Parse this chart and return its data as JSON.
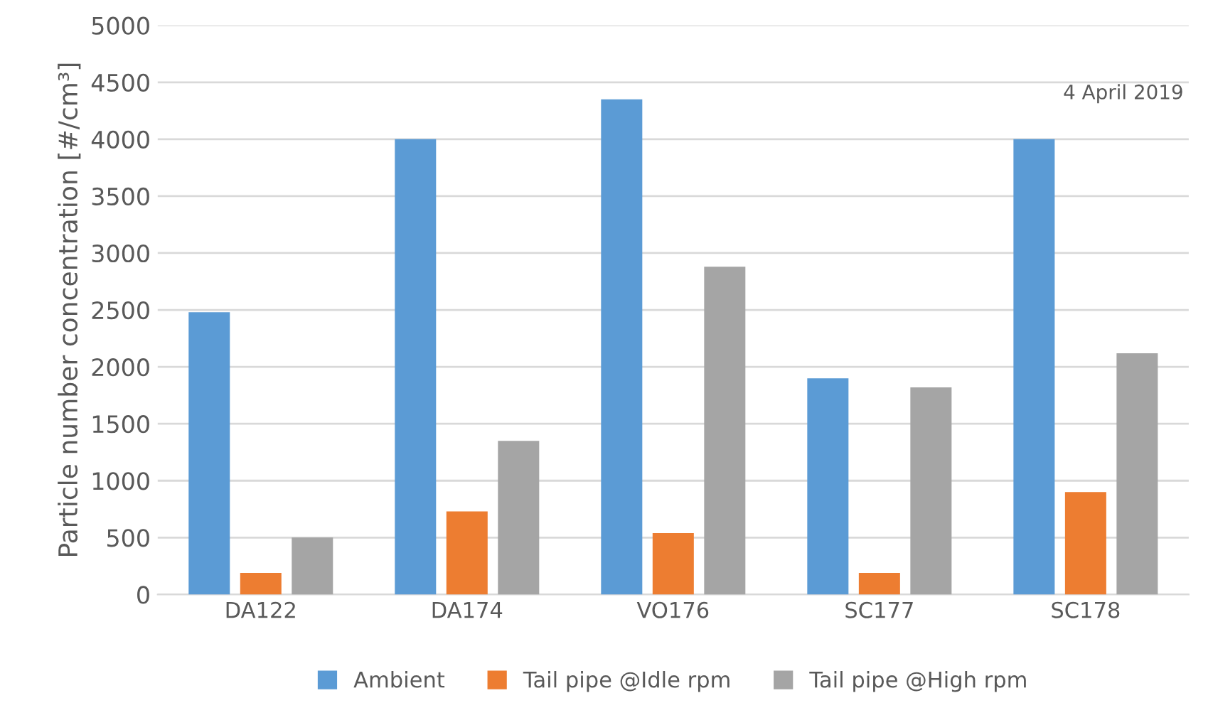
{
  "chart_data": {
    "type": "bar",
    "ylabel": "Particle number concentration [#/cm³]",
    "categories": [
      "DA122",
      "DA174",
      "VO176",
      "SC177",
      "SC178"
    ],
    "series": [
      {
        "name": "Ambient",
        "color": "#5b9bd5",
        "values": [
          2480,
          4000,
          4350,
          1900,
          4000
        ]
      },
      {
        "name": "Tail pipe @Idle rpm",
        "color": "#ed7d31",
        "values": [
          190,
          730,
          540,
          190,
          900
        ]
      },
      {
        "name": "Tail pipe @High rpm",
        "color": "#a5a5a5",
        "values": [
          500,
          1350,
          2880,
          1820,
          2120
        ]
      }
    ],
    "ylim": [
      0,
      5000
    ],
    "yticks": [
      0,
      500,
      1000,
      1500,
      2000,
      2500,
      3000,
      3500,
      4000,
      4500,
      5000
    ],
    "grid": "y",
    "legend": "bottom",
    "annotations": [
      "4 April 2019"
    ]
  }
}
